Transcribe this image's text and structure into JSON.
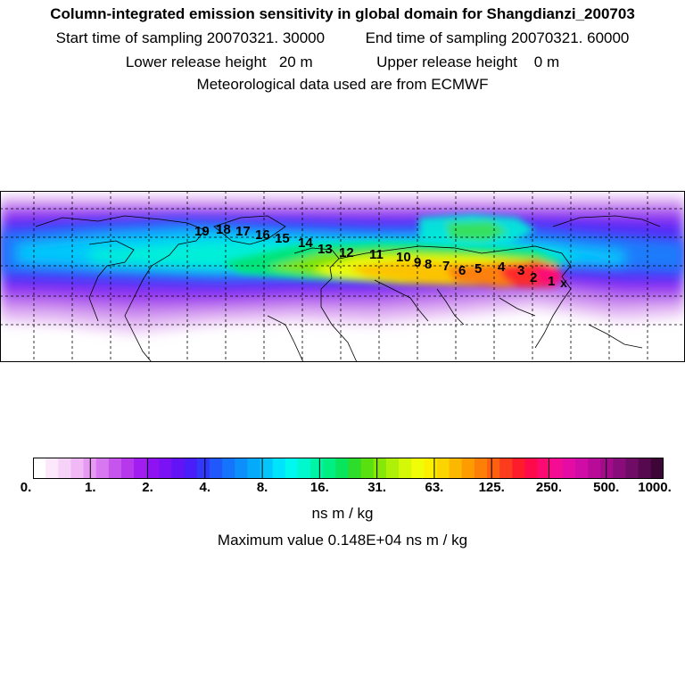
{
  "header": {
    "title": "Column-integrated emission sensitivity in global domain for Shangdianzi_200703",
    "start_sampling": "Start time of sampling 20070321. 30000",
    "end_sampling": "End time of sampling 20070321. 60000",
    "lower_release": "Lower release height   20 m",
    "upper_release": "Upper release height    0 m",
    "met_data": "Meteorological data used are from ECMWF"
  },
  "map": {
    "trajectory_labels": [
      "1",
      "2",
      "3",
      "4",
      "5",
      "6",
      "7",
      "8",
      "9",
      "10",
      "11",
      "12",
      "13",
      "14",
      "15",
      "16",
      "17",
      "18",
      "19"
    ],
    "receptor_marker": "x"
  },
  "colorbar": {
    "ticks": [
      "0.",
      "1.",
      "2.",
      "4.",
      "8.",
      "16.",
      "31.",
      "63.",
      "125.",
      "250.",
      "500.",
      "1000."
    ],
    "colors": [
      "#ffffff",
      "#fbe8fb",
      "#f6d2f8",
      "#f1b8f6",
      "#e69af2",
      "#d778f0",
      "#c655ee",
      "#b637ec",
      "#a21ef0",
      "#8f12f2",
      "#7b12f5",
      "#6314f6",
      "#4a1ef8",
      "#3238fa",
      "#2058fb",
      "#1474fb",
      "#0c8efb",
      "#06aafb",
      "#04c6fb",
      "#00e4fb",
      "#00f8ee",
      "#00f8cc",
      "#00f4a6",
      "#00ee82",
      "#08e45c",
      "#2edc2c",
      "#5ae010",
      "#86e808",
      "#aef008",
      "#d4f808",
      "#f0fc08",
      "#fcf000",
      "#fcd400",
      "#fcb800",
      "#fc9c00",
      "#fc8008",
      "#fc6010",
      "#fc3c1c",
      "#fc1c2c",
      "#fc0a4c",
      "#fc0a74",
      "#f40c94",
      "#e40ca4",
      "#d00ca6",
      "#b80c98",
      "#a00c8a",
      "#880c7a",
      "#6e0c66",
      "#56094e",
      "#3e0636"
    ],
    "units": "ns m / kg",
    "maximum": "Maximum value  0.148E+04 ns m / kg"
  }
}
